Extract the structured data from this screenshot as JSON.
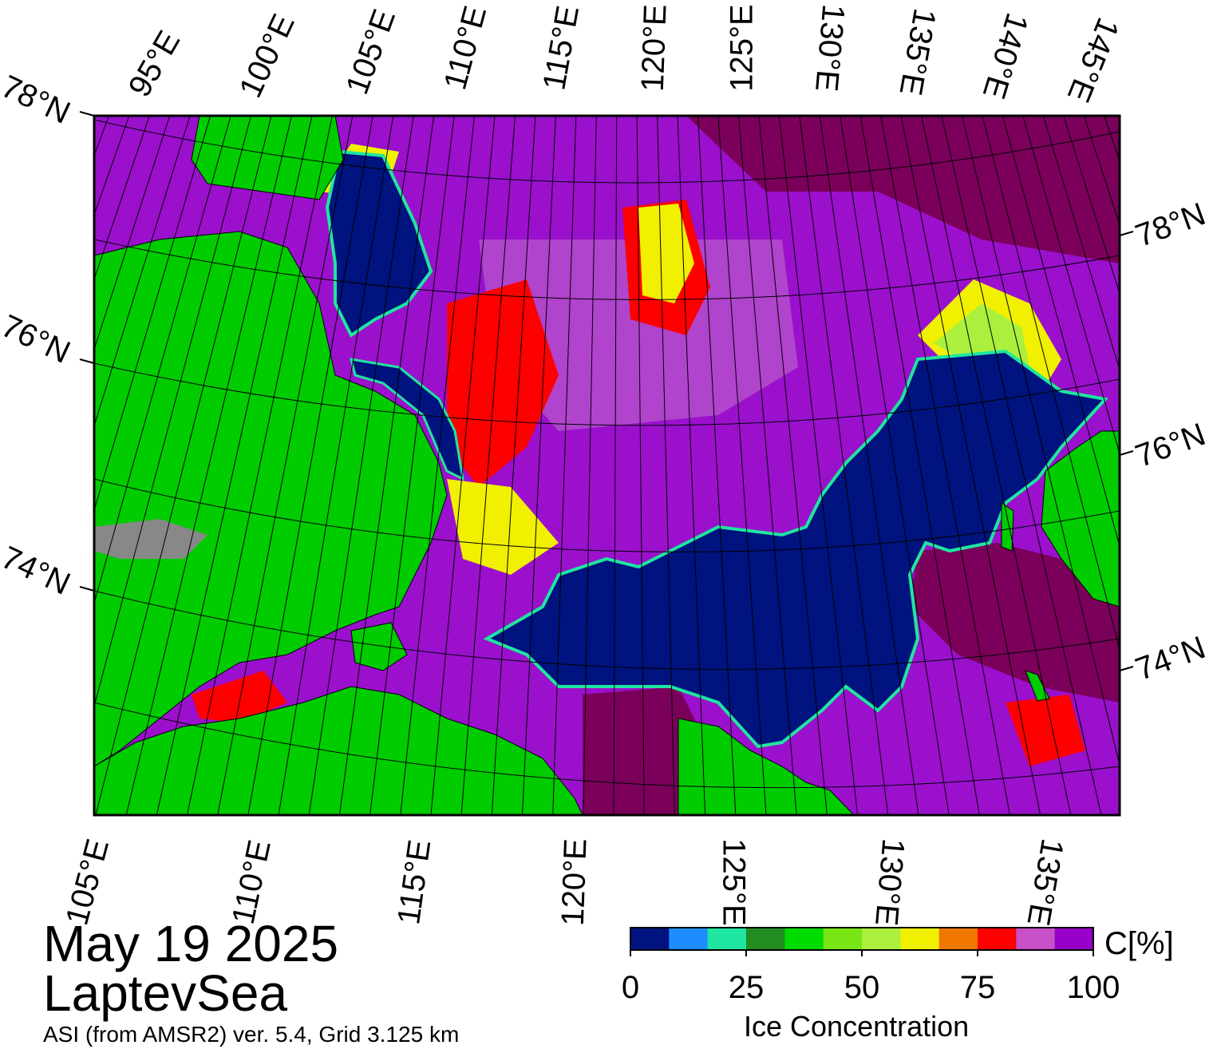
{
  "map": {
    "date": "May 19 2025",
    "region": "LaptevSea",
    "product": "ASI (from AMSR2) ver. 5.4,  Grid 3.125 km",
    "colors": {
      "open_water": "#00137e",
      "land": "#00cc00",
      "land_ice": "#888888",
      "high_ice": "#7a005a",
      "frame": "#000000"
    },
    "top_lon_labels": [
      "95°E",
      "100°E",
      "105°E",
      "110°E",
      "115°E",
      "120°E",
      "125°E",
      "130°E",
      "135°E",
      "140°E",
      "145°E"
    ],
    "bottom_lon_labels": [
      "105°E",
      "110°E",
      "115°E",
      "120°E",
      "125°E",
      "130°E",
      "135°E"
    ],
    "left_lat_labels": [
      "78°N",
      "76°N",
      "74°N"
    ],
    "right_lat_labels": [
      "78°N",
      "76°N",
      "74°N"
    ]
  },
  "colorbar": {
    "title": "Ice Concentration",
    "unit": "C[%]",
    "ticks": [
      "0",
      "25",
      "50",
      "75",
      "100"
    ],
    "colors": [
      "#00137e",
      "#1e8cff",
      "#1ee6a0",
      "#228b22",
      "#00dc00",
      "#78e614",
      "#aaf03c",
      "#f0f000",
      "#f07800",
      "#ff0000",
      "#c850c8",
      "#9600c8"
    ]
  }
}
